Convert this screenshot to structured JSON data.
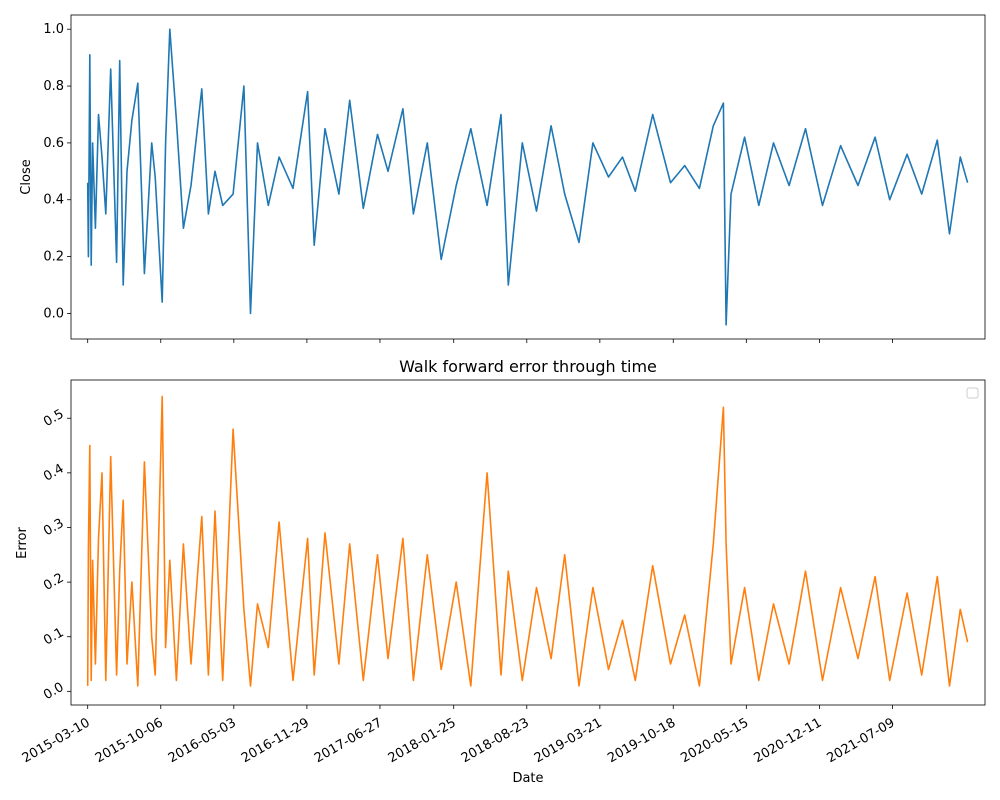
{
  "chart_data": [
    {
      "type": "line",
      "title": "",
      "xlabel": "",
      "ylabel": "Close",
      "ylim": [
        -0.09,
        1.05
      ],
      "yticks": [
        0.0,
        0.2,
        0.4,
        0.6,
        0.8,
        1.0
      ],
      "ytick_labels": [
        "0.0",
        "0.2",
        "0.4",
        "0.6",
        "0.8",
        "1.0"
      ],
      "xticks": [
        "2015-03-10",
        "2015-10-06",
        "2016-05-03",
        "2016-11-29",
        "2017-06-27",
        "2018-01-25",
        "2018-08-23",
        "2019-03-21",
        "2019-10-18",
        "2020-05-15",
        "2020-12-11",
        "2021-07-09"
      ],
      "xlim": [
        "2015-01-21",
        "2022-04-01"
      ],
      "grid": false,
      "color": "#1f77b4",
      "series": [
        {
          "x": [
            "2015-03-10",
            "2015-03-12",
            "2015-03-16",
            "2015-03-20",
            "2015-03-24",
            "2015-04-01",
            "2015-04-10",
            "2015-04-20",
            "2015-05-01",
            "2015-05-15",
            "2015-06-01",
            "2015-06-10",
            "2015-06-20",
            "2015-07-01",
            "2015-07-15",
            "2015-08-01",
            "2015-08-20",
            "2015-09-10",
            "2015-09-20",
            "2015-10-10",
            "2015-10-20",
            "2015-11-01",
            "2015-11-20",
            "2015-12-10",
            "2016-01-01",
            "2016-02-01",
            "2016-02-20",
            "2016-03-10",
            "2016-04-01",
            "2016-05-01",
            "2016-06-01",
            "2016-06-20",
            "2016-07-10",
            "2016-08-10",
            "2016-09-10",
            "2016-10-20",
            "2016-12-01",
            "2016-12-20",
            "2017-01-20",
            "2017-03-01",
            "2017-04-01",
            "2017-05-10",
            "2017-06-20",
            "2017-07-20",
            "2017-09-01",
            "2017-10-01",
            "2017-11-10",
            "2017-12-20",
            "2018-02-01",
            "2018-03-15",
            "2018-05-01",
            "2018-06-10",
            "2018-07-01",
            "2018-08-10",
            "2018-09-20",
            "2018-11-01",
            "2018-12-10",
            "2019-01-20",
            "2019-03-01",
            "2019-04-15",
            "2019-05-25",
            "2019-07-01",
            "2019-08-20",
            "2019-10-10",
            "2019-11-20",
            "2020-01-01",
            "2020-02-10",
            "2020-03-10",
            "2020-03-18",
            "2020-04-01",
            "2020-05-10",
            "2020-06-20",
            "2020-08-01",
            "2020-09-15",
            "2020-11-01",
            "2020-12-20",
            "2021-02-10",
            "2021-04-01",
            "2021-05-20",
            "2021-07-01",
            "2021-08-20",
            "2021-10-01",
            "2021-11-15",
            "2021-12-20",
            "2022-01-20",
            "2022-02-10"
          ],
          "y": [
            0.46,
            0.2,
            0.91,
            0.17,
            0.6,
            0.3,
            0.7,
            0.55,
            0.35,
            0.86,
            0.18,
            0.89,
            0.1,
            0.5,
            0.68,
            0.81,
            0.14,
            0.6,
            0.48,
            0.04,
            0.6,
            1.0,
            0.68,
            0.3,
            0.45,
            0.79,
            0.35,
            0.5,
            0.38,
            0.42,
            0.8,
            0.0,
            0.6,
            0.38,
            0.55,
            0.44,
            0.78,
            0.24,
            0.65,
            0.42,
            0.75,
            0.37,
            0.63,
            0.5,
            0.72,
            0.35,
            0.6,
            0.19,
            0.45,
            0.65,
            0.38,
            0.7,
            0.1,
            0.6,
            0.36,
            0.66,
            0.42,
            0.25,
            0.6,
            0.48,
            0.55,
            0.43,
            0.7,
            0.46,
            0.52,
            0.44,
            0.66,
            0.74,
            -0.04,
            0.42,
            0.62,
            0.38,
            0.6,
            0.45,
            0.65,
            0.38,
            0.59,
            0.45,
            0.62,
            0.4,
            0.56,
            0.42,
            0.61,
            0.28,
            0.55,
            0.46
          ]
        }
      ]
    },
    {
      "type": "line",
      "title": "Walk forward error through time",
      "xlabel": "Date",
      "ylabel": "Error",
      "ylim": [
        -0.025,
        0.57
      ],
      "yticks": [
        0.0,
        0.1,
        0.2,
        0.3,
        0.4,
        0.5
      ],
      "ytick_labels": [
        "0.0",
        "0.1",
        "0.2",
        "0.3",
        "0.4",
        "0.5"
      ],
      "xticks": [
        "2015-03-10",
        "2015-10-06",
        "2016-05-03",
        "2016-11-29",
        "2017-06-27",
        "2018-01-25",
        "2018-08-23",
        "2019-03-21",
        "2019-10-18",
        "2020-05-15",
        "2020-12-11",
        "2021-07-09"
      ],
      "xlim": [
        "2015-01-21",
        "2022-04-01"
      ],
      "grid": false,
      "legend": "top-right",
      "color": "#ff7f0e",
      "series": [
        {
          "x": [
            "2015-03-10",
            "2015-03-12",
            "2015-03-16",
            "2015-03-20",
            "2015-03-24",
            "2015-04-01",
            "2015-04-10",
            "2015-04-20",
            "2015-05-01",
            "2015-05-15",
            "2015-06-01",
            "2015-06-10",
            "2015-06-20",
            "2015-07-01",
            "2015-07-15",
            "2015-08-01",
            "2015-08-20",
            "2015-09-10",
            "2015-09-20",
            "2015-10-10",
            "2015-10-20",
            "2015-11-01",
            "2015-11-20",
            "2015-12-10",
            "2016-01-01",
            "2016-02-01",
            "2016-02-20",
            "2016-03-10",
            "2016-04-01",
            "2016-05-01",
            "2016-06-01",
            "2016-06-20",
            "2016-07-10",
            "2016-08-10",
            "2016-09-10",
            "2016-10-20",
            "2016-12-01",
            "2016-12-20",
            "2017-01-20",
            "2017-03-01",
            "2017-04-01",
            "2017-05-10",
            "2017-06-20",
            "2017-07-20",
            "2017-09-01",
            "2017-10-01",
            "2017-11-10",
            "2017-12-20",
            "2018-02-01",
            "2018-03-15",
            "2018-05-01",
            "2018-06-10",
            "2018-07-01",
            "2018-08-10",
            "2018-09-20",
            "2018-11-01",
            "2018-12-10",
            "2019-01-20",
            "2019-03-01",
            "2019-04-15",
            "2019-05-25",
            "2019-07-01",
            "2019-08-20",
            "2019-10-10",
            "2019-11-20",
            "2020-01-01",
            "2020-02-10",
            "2020-03-10",
            "2020-03-18",
            "2020-04-01",
            "2020-05-10",
            "2020-06-20",
            "2020-08-01",
            "2020-09-15",
            "2020-11-01",
            "2020-12-20",
            "2021-02-10",
            "2021-04-01",
            "2021-05-20",
            "2021-07-01",
            "2021-08-20",
            "2021-10-01",
            "2021-11-15",
            "2021-12-20",
            "2022-01-20",
            "2022-02-10"
          ],
          "y": [
            0.01,
            0.26,
            0.45,
            0.02,
            0.24,
            0.05,
            0.28,
            0.4,
            0.02,
            0.43,
            0.03,
            0.22,
            0.35,
            0.05,
            0.2,
            0.01,
            0.42,
            0.1,
            0.03,
            0.54,
            0.08,
            0.24,
            0.02,
            0.27,
            0.05,
            0.32,
            0.03,
            0.33,
            0.02,
            0.48,
            0.15,
            0.01,
            0.16,
            0.08,
            0.31,
            0.02,
            0.28,
            0.03,
            0.29,
            0.05,
            0.27,
            0.02,
            0.25,
            0.06,
            0.28,
            0.02,
            0.25,
            0.04,
            0.2,
            0.01,
            0.4,
            0.03,
            0.22,
            0.02,
            0.19,
            0.06,
            0.25,
            0.01,
            0.19,
            0.04,
            0.13,
            0.02,
            0.23,
            0.05,
            0.14,
            0.01,
            0.27,
            0.52,
            0.27,
            0.05,
            0.19,
            0.02,
            0.16,
            0.05,
            0.22,
            0.02,
            0.19,
            0.06,
            0.21,
            0.02,
            0.18,
            0.03,
            0.21,
            0.01,
            0.15,
            0.09
          ]
        }
      ]
    }
  ]
}
